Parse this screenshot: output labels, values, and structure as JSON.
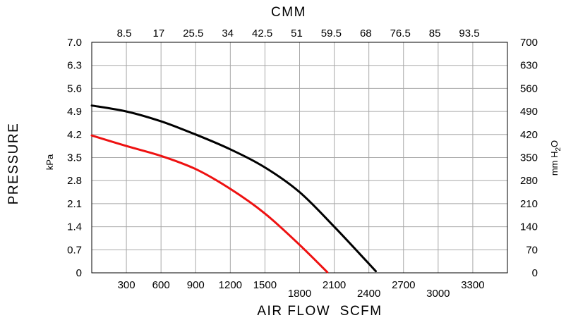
{
  "chart_data": {
    "type": "line",
    "top_axis_title": "CMM",
    "bottom_axis_title": "AIR FLOW  SCFM",
    "left_axis_title": "PRESSURE",
    "left_unit": "kPa",
    "right_unit": "mm H2O",
    "xlim": [
      0,
      3600
    ],
    "ylim": [
      0,
      7.0
    ],
    "x_ticks": [
      300,
      600,
      900,
      1200,
      1500,
      1800,
      2100,
      2400,
      2700,
      3000,
      3300
    ],
    "x_tick_labels": [
      "300",
      "600",
      "900",
      "1200",
      "1500",
      "1800",
      "2100",
      "2400",
      "2700",
      "3000",
      "3300"
    ],
    "top_ticks": [
      8.5,
      17,
      25.5,
      34,
      42.5,
      51,
      59.5,
      68,
      76.5,
      85,
      93.5
    ],
    "top_tick_labels": [
      "8.5",
      "17",
      "25.5",
      "34",
      "42.5",
      "51",
      "59.5",
      "68",
      "76.5",
      "85",
      "93.5"
    ],
    "y_ticks": [
      0,
      0.7,
      1.4,
      2.1,
      2.8,
      3.5,
      4.2,
      4.9,
      5.6,
      6.3,
      7.0
    ],
    "y_tick_labels": [
      "0",
      "0.7",
      "1.4",
      "2.1",
      "2.8",
      "3.5",
      "4.2",
      "4.9",
      "5.6",
      "6.3",
      "7.0"
    ],
    "right_tick_labels": [
      "0",
      "70",
      "140",
      "210",
      "280",
      "350",
      "420",
      "490",
      "560",
      "630",
      "700"
    ],
    "grid": true,
    "series": [
      {
        "color": "#000000",
        "x": [
          0,
          300,
          600,
          900,
          1200,
          1500,
          1800,
          2100,
          2460
        ],
        "y": [
          5.08,
          4.9,
          4.6,
          4.2,
          3.75,
          3.2,
          2.45,
          1.4,
          0.05
        ]
      },
      {
        "color": "#ee1111",
        "x": [
          0,
          300,
          600,
          900,
          1200,
          1500,
          1800,
          2040
        ],
        "y": [
          4.17,
          3.85,
          3.55,
          3.15,
          2.55,
          1.8,
          0.85,
          0.02
        ]
      }
    ]
  }
}
